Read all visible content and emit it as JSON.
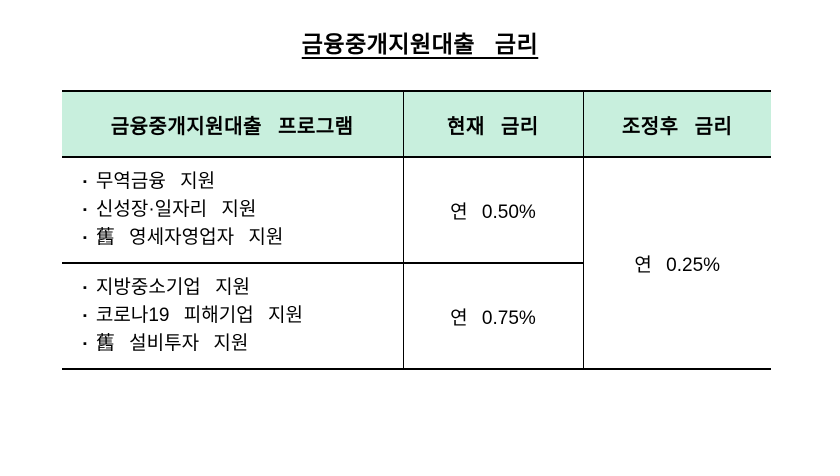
{
  "title": "금융중개지원대출 금리",
  "table": {
    "headers": {
      "program": "금융중개지원대출 프로그램",
      "current_rate": "현재 금리",
      "adjusted_rate": "조정후 금리"
    },
    "bullet": "▪",
    "rows": [
      {
        "programs": [
          "무역금융 지원",
          "신성장·일자리 지원",
          "舊 영세자영업자 지원"
        ],
        "current_rate": "연 0.50%"
      },
      {
        "programs": [
          "지방중소기업 지원",
          "코로나19 피해기업 지원",
          "舊 설비투자 지원"
        ],
        "current_rate": "연 0.75%"
      }
    ],
    "adjusted_rate": "연 0.25%"
  },
  "colors": {
    "header_bg": "#C8EFDD",
    "border": "#000000",
    "text": "#000000",
    "background": "#FFFFFF"
  }
}
